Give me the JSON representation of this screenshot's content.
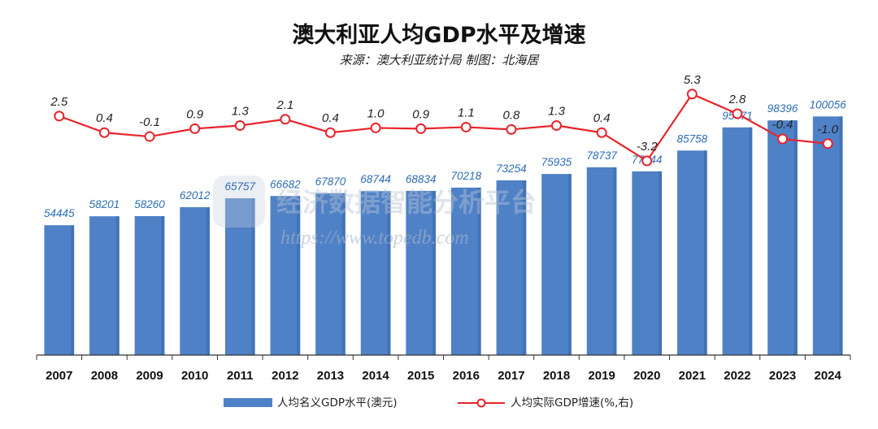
{
  "chart_data": {
    "type": "bar",
    "title": "澳大利亚人均GDP水平及增速",
    "subtitle": "来源：澳大利亚统计局 制图：北海居",
    "categories": [
      "2007",
      "2008",
      "2009",
      "2010",
      "2011",
      "2012",
      "2013",
      "2014",
      "2015",
      "2016",
      "2017",
      "2018",
      "2019",
      "2020",
      "2021",
      "2022",
      "2023",
      "2024"
    ],
    "series": [
      {
        "name": "人均名义GDP水平(澳元)",
        "type": "bar",
        "axis": "left",
        "color": "#4f81c7",
        "values": [
          54445,
          58201,
          58260,
          62012,
          65757,
          66682,
          67870,
          68744,
          68834,
          70218,
          73254,
          75935,
          78737,
          77044,
          85758,
          95471,
          98396,
          100056
        ]
      },
      {
        "name": "人均实际GDP增速(%,右)",
        "type": "line",
        "axis": "right",
        "color": "#e8242c",
        "values": [
          2.5,
          0.4,
          -0.1,
          0.9,
          1.3,
          2.1,
          0.4,
          1.0,
          0.9,
          1.1,
          0.8,
          1.3,
          0.4,
          -3.2,
          5.3,
          2.8,
          -0.4,
          -1.0
        ]
      }
    ],
    "xlabel": "",
    "ylabel": "",
    "ylim": [
      0,
      108000
    ],
    "y2lim": [
      -6.5,
      9
    ],
    "grid": false,
    "legend": "bottom"
  },
  "watermark": {
    "name": "经济数据智能分析平台",
    "url": "https://www.topedb.com"
  }
}
